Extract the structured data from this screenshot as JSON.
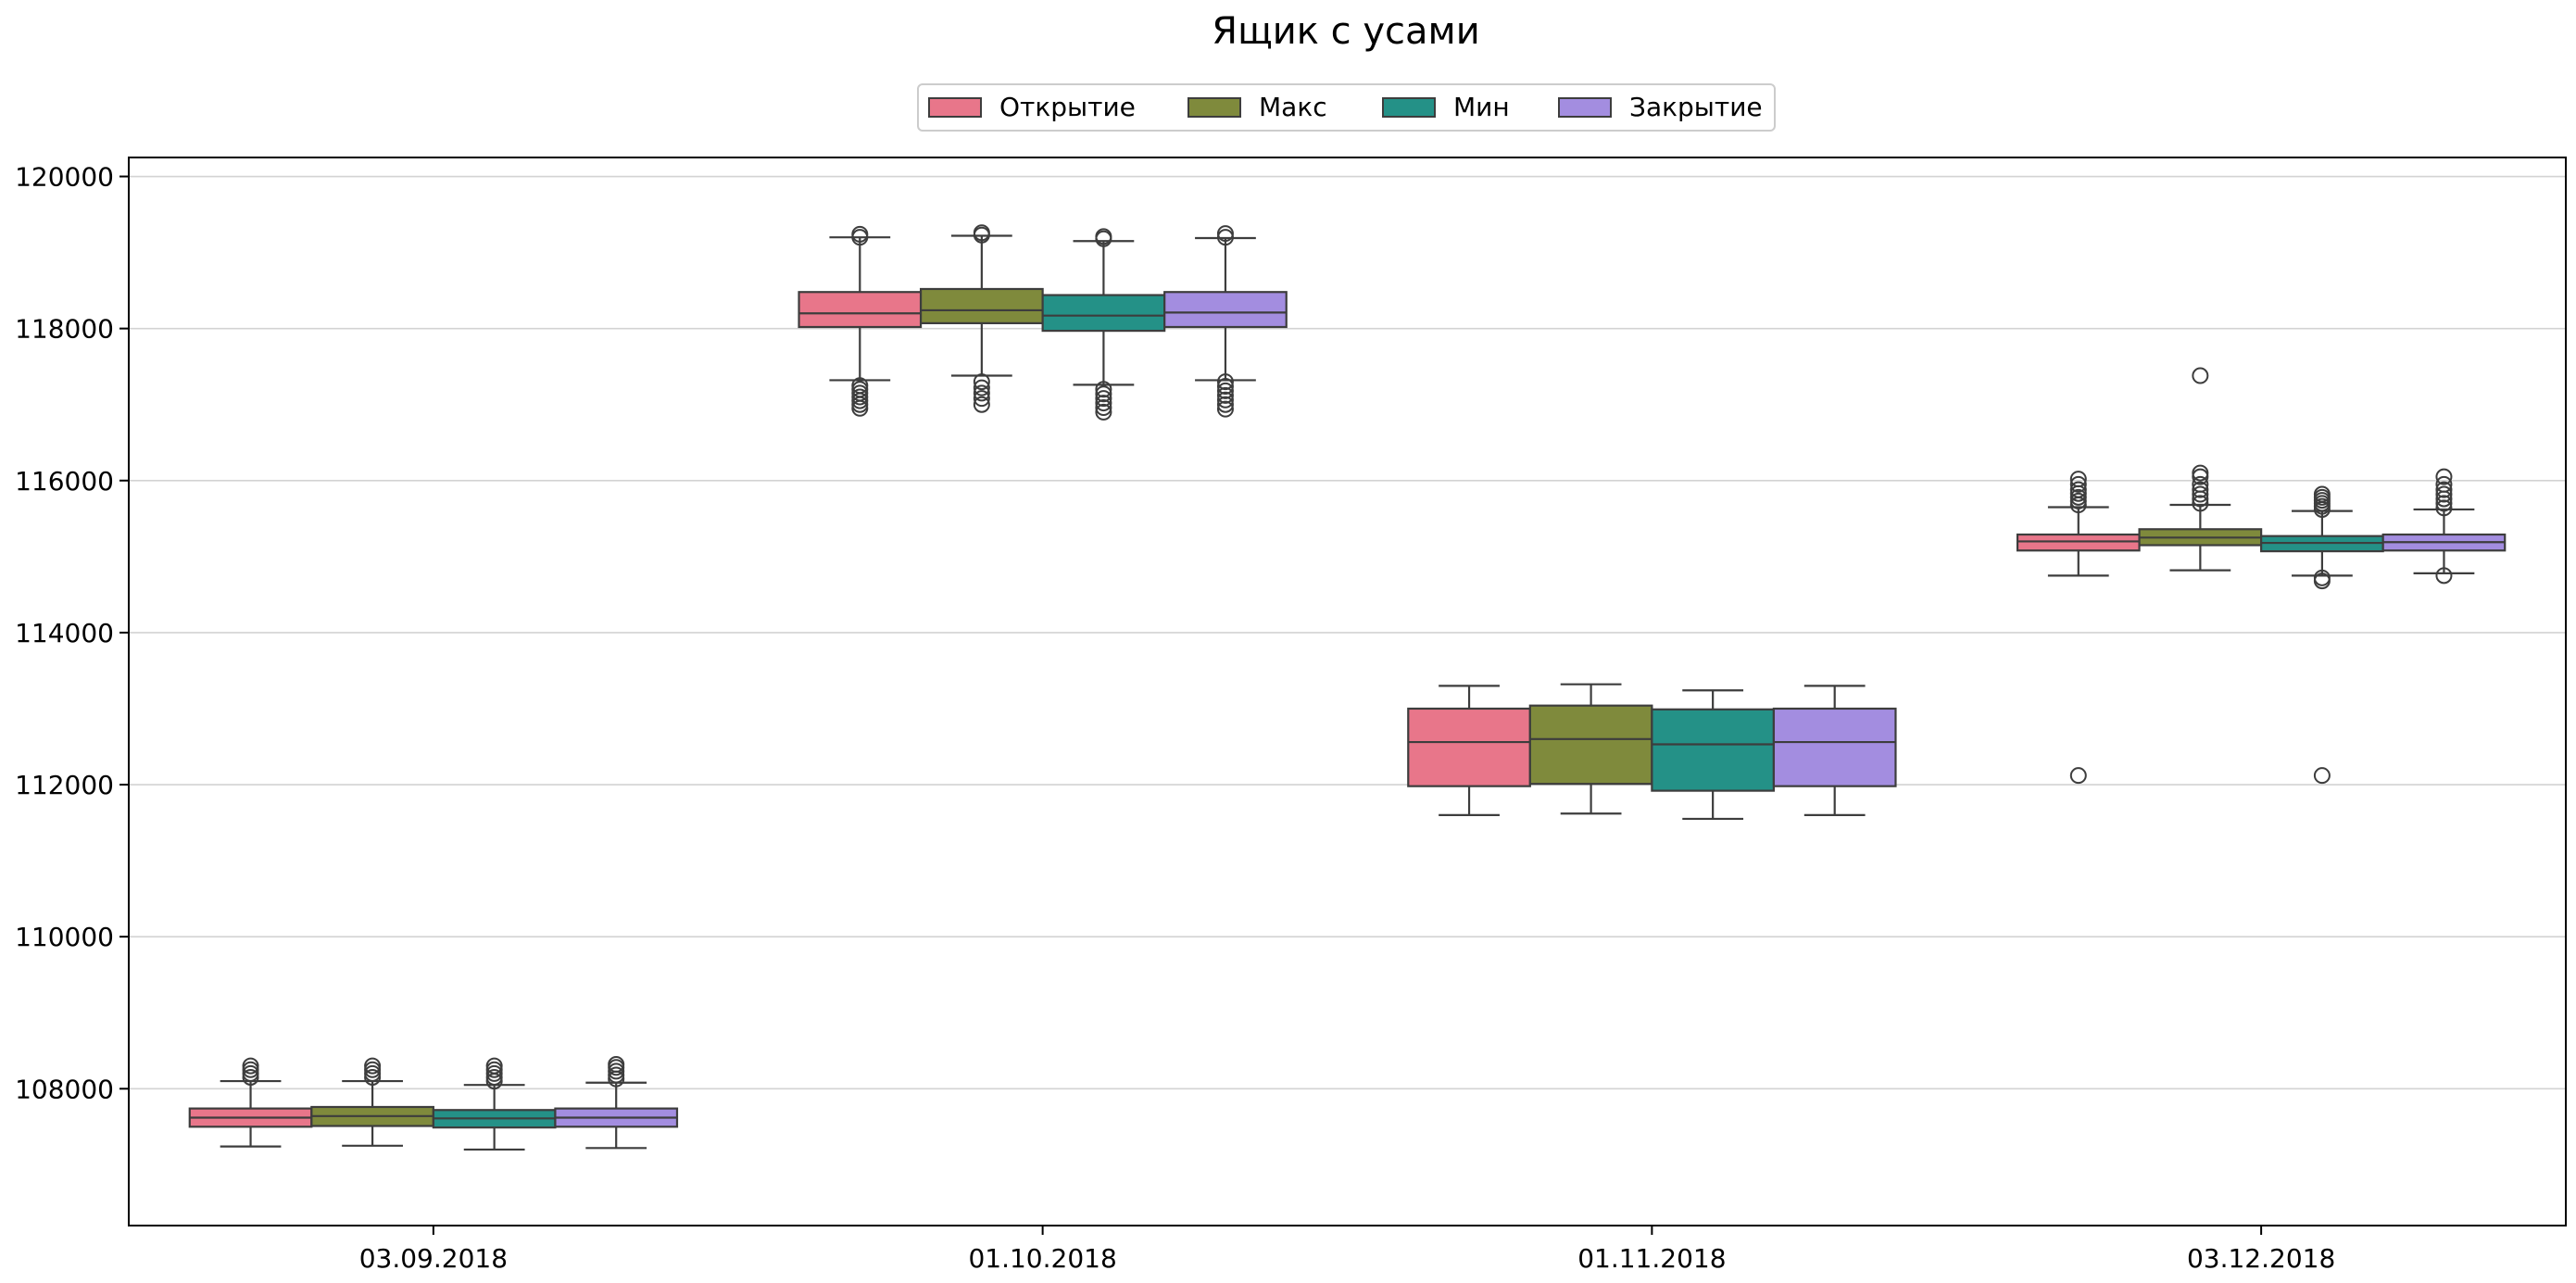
{
  "chart_data": {
    "type": "box",
    "title": "Ящик с усами",
    "xlabel": "",
    "ylabel": "",
    "categories": [
      "03.09.2018",
      "01.10.2018",
      "01.11.2018",
      "03.12.2018"
    ],
    "ylim": [
      106200,
      120250
    ],
    "yticks": [
      108000,
      110000,
      112000,
      114000,
      116000,
      118000,
      120000
    ],
    "grid": "y",
    "legend_position": "top-center",
    "series": [
      {
        "name": "Открытие",
        "color": "#e8768a",
        "boxes": [
          {
            "whislo": 107240,
            "q1": 107500,
            "med": 107620,
            "q3": 107740,
            "whishi": 108100,
            "fliers": [
              108150,
              108200,
              108250,
              108300
            ]
          },
          {
            "whislo": 117320,
            "q1": 118020,
            "med": 118200,
            "q3": 118480,
            "whishi": 119200,
            "fliers": [
              116950,
              117000,
              117050,
              117100,
              117150,
              117200,
              117250,
              119200,
              119240
            ]
          },
          {
            "whislo": 111600,
            "q1": 111980,
            "med": 112560,
            "q3": 113000,
            "whishi": 113300,
            "fliers": []
          },
          {
            "whislo": 114750,
            "q1": 115080,
            "med": 115200,
            "q3": 115290,
            "whishi": 115650,
            "fliers": [
              112120,
              115680,
              115730,
              115780,
              115830,
              115880,
              115950,
              116020
            ]
          }
        ]
      },
      {
        "name": "Макс",
        "color": "#7f8a3c",
        "boxes": [
          {
            "whislo": 107250,
            "q1": 107510,
            "med": 107640,
            "q3": 107760,
            "whishi": 108100,
            "fliers": [
              108150,
              108200,
              108250,
              108300
            ]
          },
          {
            "whislo": 117380,
            "q1": 118070,
            "med": 118240,
            "q3": 118520,
            "whishi": 119220,
            "fliers": [
              117000,
              117080,
              117150,
              117220,
              117300,
              119230,
              119260
            ]
          },
          {
            "whislo": 111620,
            "q1": 112010,
            "med": 112600,
            "q3": 113040,
            "whishi": 113320,
            "fliers": []
          },
          {
            "whislo": 114820,
            "q1": 115150,
            "med": 115250,
            "q3": 115360,
            "whishi": 115680,
            "fliers": [
              115700,
              115760,
              115820,
              115880,
              115950,
              116050,
              116100,
              117380
            ]
          }
        ]
      },
      {
        "name": "Мин",
        "color": "#249187",
        "boxes": [
          {
            "whislo": 107200,
            "q1": 107490,
            "med": 107610,
            "q3": 107720,
            "whishi": 108050,
            "fliers": [
              108100,
              108150,
              108200,
              108250,
              108300
            ]
          },
          {
            "whislo": 117260,
            "q1": 117970,
            "med": 118170,
            "q3": 118440,
            "whishi": 119150,
            "fliers": [
              116900,
              116960,
              117020,
              117080,
              117140,
              117200,
              119180,
              119210
            ]
          },
          {
            "whislo": 111550,
            "q1": 111920,
            "med": 112530,
            "q3": 112990,
            "whishi": 113240,
            "fliers": []
          },
          {
            "whislo": 114750,
            "q1": 115070,
            "med": 115180,
            "q3": 115270,
            "whishi": 115600,
            "fliers": [
              112120,
              114680,
              114720,
              115620,
              115660,
              115700,
              115740,
              115780,
              115820
            ]
          }
        ]
      },
      {
        "name": "Закрытие",
        "color": "#a38de0",
        "boxes": [
          {
            "whislo": 107220,
            "q1": 107500,
            "med": 107620,
            "q3": 107740,
            "whishi": 108080,
            "fliers": [
              108130,
              108180,
              108230,
              108280,
              108320
            ]
          },
          {
            "whislo": 117320,
            "q1": 118020,
            "med": 118210,
            "q3": 118480,
            "whishi": 119190,
            "fliers": [
              116940,
              117000,
              117060,
              117120,
              117180,
              117240,
              117300,
              119200,
              119250
            ]
          },
          {
            "whislo": 111600,
            "q1": 111980,
            "med": 112560,
            "q3": 113000,
            "whishi": 113300,
            "fliers": []
          },
          {
            "whislo": 114780,
            "q1": 115080,
            "med": 115190,
            "q3": 115290,
            "whishi": 115620,
            "fliers": [
              114750,
              115640,
              115700,
              115760,
              115820,
              115880,
              115950,
              116050
            ]
          }
        ]
      }
    ]
  }
}
